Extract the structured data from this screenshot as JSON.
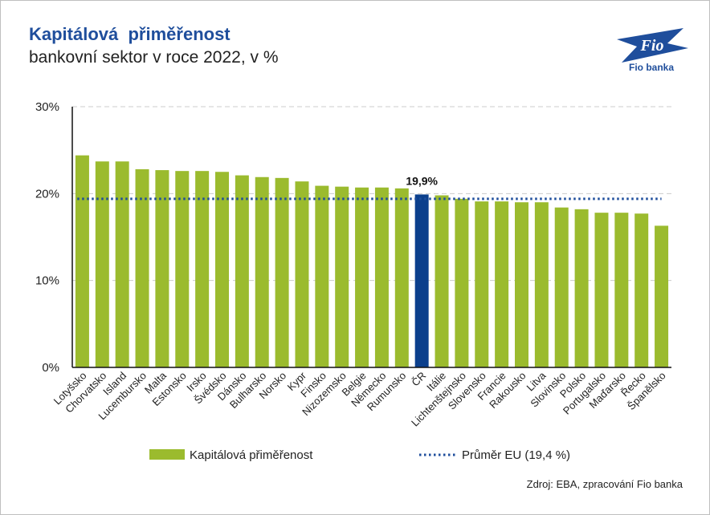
{
  "header": {
    "title": "Kapitálová  přiměřenost",
    "subtitle": "bankovní sektor v roce 2022, v %"
  },
  "logo": {
    "text": "Fio",
    "caption": "Fio banka"
  },
  "source": "Zdroj: EBA, zpracování Fio banka",
  "colors": {
    "bar": "#9bbb2e",
    "highlight": "#0b3f8c",
    "avg_line": "#1f4e9c",
    "title": "#1f4e9c"
  },
  "chart_data": {
    "type": "bar",
    "categories": [
      "Lotyšsko",
      "Chorvatsko",
      "Island",
      "Lucembursko",
      "Malta",
      "Estonsko",
      "Irsko",
      "Švédsko",
      "Dánsko",
      "Bulharsko",
      "Norsko",
      "Kypr",
      "Finsko",
      "Nizozemsko",
      "Belgie",
      "Německo",
      "Rumunsko",
      "ČR",
      "Itálie",
      "Lichtenštejnsko",
      "Slovensko",
      "Francie",
      "Rakousko",
      "Litva",
      "Slovinsko",
      "Polsko",
      "Portugalsko",
      "Maďarsko",
      "Řecko",
      "Španělsko"
    ],
    "values": [
      24.4,
      23.7,
      23.7,
      22.8,
      22.7,
      22.6,
      22.6,
      22.5,
      22.1,
      21.9,
      21.8,
      21.4,
      20.9,
      20.8,
      20.7,
      20.7,
      20.6,
      19.9,
      19.8,
      19.4,
      19.1,
      19.1,
      19.0,
      19.0,
      18.4,
      18.2,
      17.8,
      17.8,
      17.7,
      16.3
    ],
    "highlight_index": 17,
    "highlight_label": "19,9%",
    "eu_average": 19.4,
    "yticks": [
      "0%",
      "10%",
      "20%",
      "30%"
    ],
    "ylim": [
      0,
      30
    ],
    "grid": true,
    "legend": {
      "position": "bottom",
      "bar_label": "Kapitálová přiměřenost",
      "line_label": "Průměr EU (19,4 %)"
    }
  }
}
